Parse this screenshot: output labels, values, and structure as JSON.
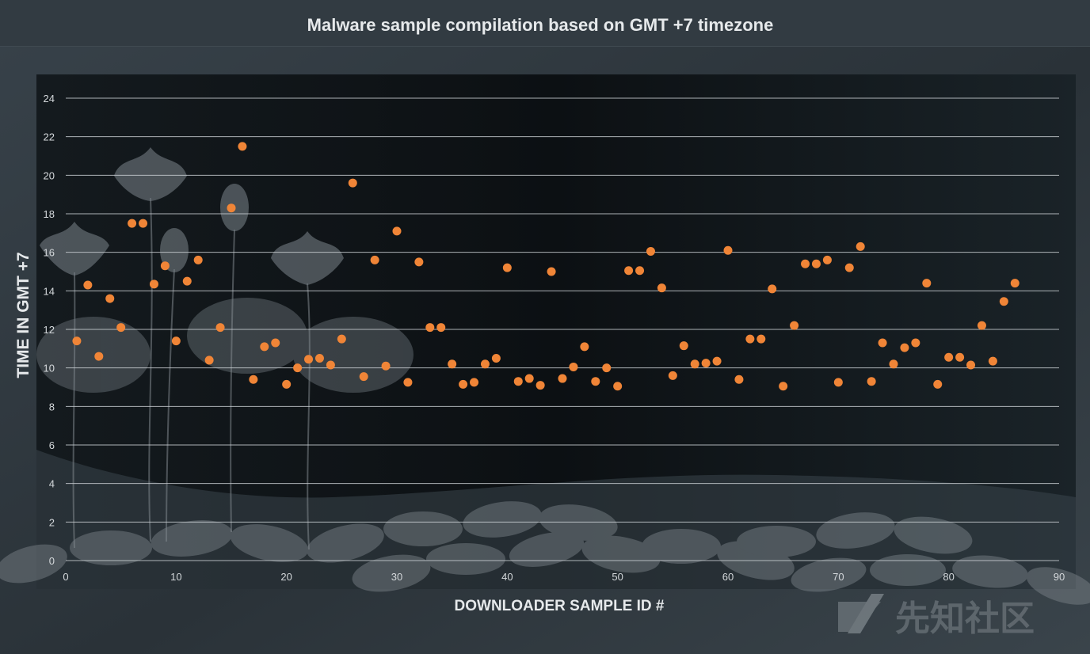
{
  "colors": {
    "background": "#2a3238",
    "plot_area": "#0e1215",
    "point": "#f08537",
    "grid": "#c9ced2",
    "text": "#e6e9eb"
  },
  "watermark": {
    "text": "先知社区"
  },
  "chart_data": {
    "type": "scatter",
    "title": "Malware sample compilation based on GMT +7 timezone",
    "xlabel": "DOWNLOADER SAMPLE ID #",
    "ylabel": "TIME IN GMT +7",
    "xlim": [
      0,
      90
    ],
    "ylim": [
      0,
      24
    ],
    "xticks": [
      "0",
      "10",
      "20",
      "30",
      "40",
      "50",
      "60",
      "70",
      "80",
      "90"
    ],
    "yticks": [
      "0",
      "2",
      "4",
      "6",
      "8",
      "10",
      "12",
      "14",
      "16",
      "18",
      "20",
      "22",
      "24"
    ],
    "grid": "horizontal",
    "legend": "none",
    "x": [
      1,
      2,
      3,
      4,
      5,
      6,
      7,
      8,
      9,
      10,
      11,
      12,
      13,
      14,
      15,
      16,
      17,
      18,
      19,
      20,
      21,
      22,
      23,
      24,
      25,
      26,
      27,
      28,
      29,
      30,
      31,
      32,
      33,
      34,
      35,
      36,
      37,
      38,
      39,
      40,
      41,
      42,
      43,
      44,
      45,
      46,
      47,
      48,
      49,
      50,
      51,
      52,
      53,
      54,
      55,
      56,
      57,
      58,
      59,
      60,
      61,
      62,
      63,
      64,
      65,
      66,
      67,
      68,
      69,
      70,
      71,
      72,
      73,
      74,
      75,
      76,
      77,
      78,
      79,
      80,
      81,
      82,
      83,
      84,
      85,
      86
    ],
    "y": [
      11.4,
      14.3,
      10.6,
      13.6,
      12.1,
      17.5,
      17.5,
      14.35,
      15.3,
      11.4,
      14.5,
      15.6,
      10.4,
      12.1,
      18.3,
      21.5,
      9.4,
      11.1,
      11.3,
      9.15,
      10.0,
      10.45,
      10.5,
      10.15,
      11.5,
      19.6,
      9.55,
      15.6,
      10.1,
      17.1,
      9.25,
      15.5,
      12.1,
      12.1,
      10.2,
      9.15,
      9.25,
      10.2,
      10.5,
      15.2,
      9.3,
      9.45,
      9.1,
      15.0,
      9.45,
      10.05,
      11.1,
      9.3,
      10.0,
      9.05,
      15.05,
      15.05,
      16.05,
      14.15,
      9.6,
      11.15,
      10.2,
      10.25,
      10.35,
      16.1,
      9.4,
      11.5,
      11.5,
      14.1,
      9.05,
      12.2,
      15.4,
      15.4,
      15.6,
      9.25,
      15.2,
      16.3,
      9.3,
      11.3,
      10.2,
      11.05,
      11.3,
      14.4,
      9.15,
      10.55,
      10.55,
      10.15,
      12.2,
      10.35,
      13.45,
      14.4
    ]
  }
}
